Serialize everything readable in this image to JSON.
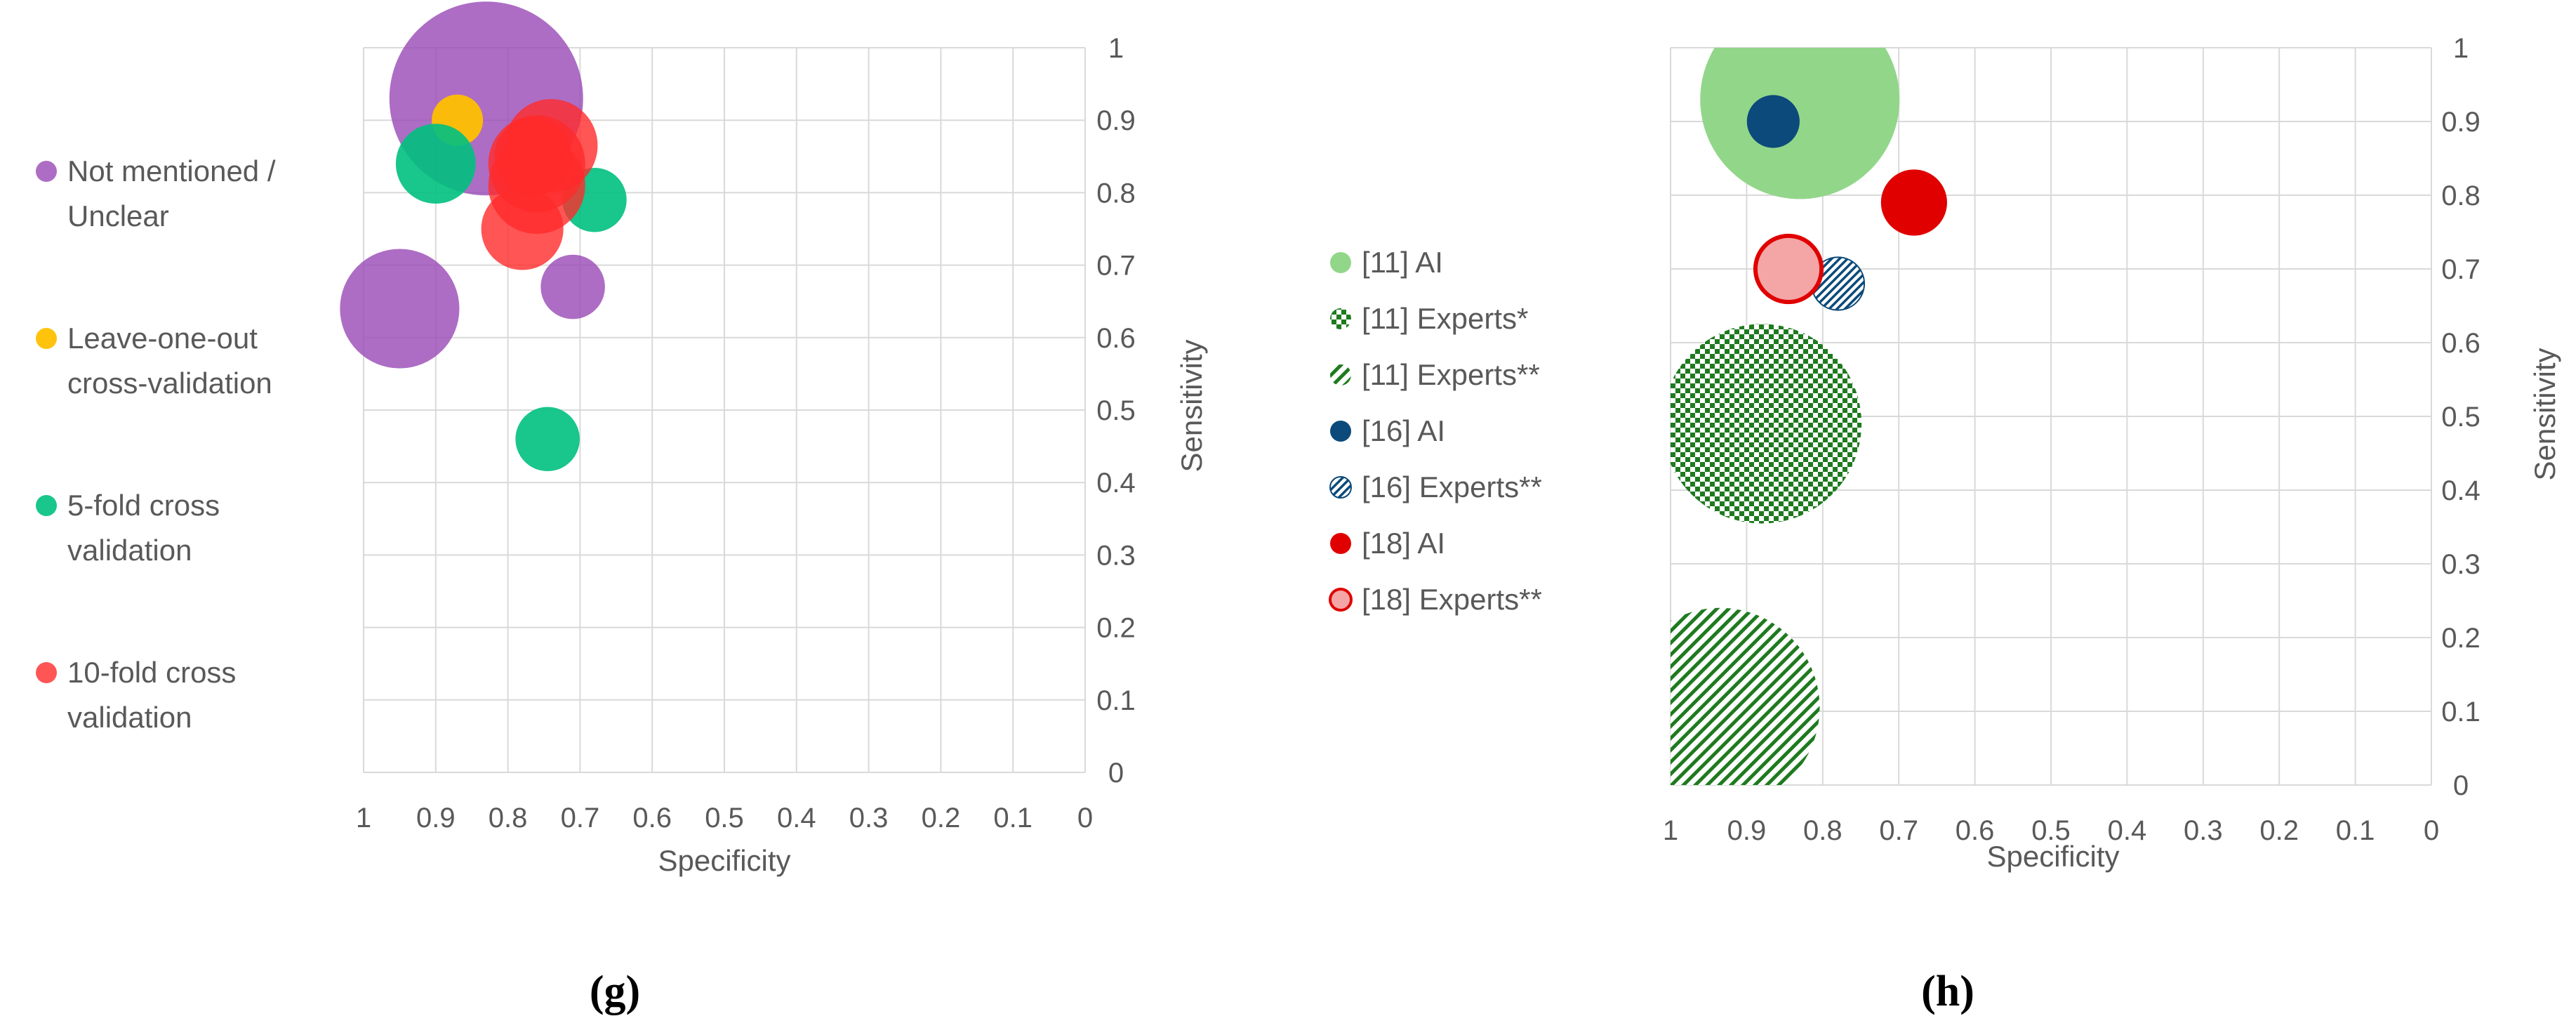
{
  "chart_data": [
    {
      "type": "scatter",
      "bubble": true,
      "panel_label": "(g)",
      "title": "",
      "xlabel": "Specificity",
      "ylabel": "Sensitivity",
      "xlim": [
        1,
        0
      ],
      "ylim": [
        0,
        1
      ],
      "x_ticks": [
        "1",
        "0.9",
        "0.8",
        "0.7",
        "0.6",
        "0.5",
        "0.4",
        "0.3",
        "0.2",
        "0.1",
        "0"
      ],
      "y_ticks": [
        "0",
        "0.1",
        "0.2",
        "0.3",
        "0.4",
        "0.5",
        "0.6",
        "0.7",
        "0.8",
        "0.9",
        "1"
      ],
      "y_axis_side": "right",
      "x_reversed": true,
      "legend_position": "left",
      "grid": true,
      "series": [
        {
          "name": "Not mentioned / Unclear",
          "legend_lines": [
            "Not mentioned /",
            "Unclear"
          ],
          "color": "#9B4DB7",
          "opacity": 0.82,
          "points": [
            {
              "x": 0.83,
              "y": 0.93,
              "size": 1.0
            },
            {
              "x": 0.95,
              "y": 0.64,
              "size": 0.38
            },
            {
              "x": 0.71,
              "y": 0.67,
              "size": 0.11
            }
          ]
        },
        {
          "name": "Leave-one-out cross-validation",
          "legend_lines": [
            "Leave-one-out",
            "cross-validation"
          ],
          "color": "#FFC000",
          "opacity": 0.95,
          "points": [
            {
              "x": 0.87,
              "y": 0.9,
              "size": 0.07
            }
          ]
        },
        {
          "name": "5-fold cross validation",
          "legend_lines": [
            "5-fold cross",
            "validation"
          ],
          "color": "#00C07F",
          "opacity": 0.9,
          "points": [
            {
              "x": 0.9,
              "y": 0.84,
              "size": 0.17
            },
            {
              "x": 0.68,
              "y": 0.79,
              "size": 0.11
            },
            {
              "x": 0.745,
              "y": 0.46,
              "size": 0.11
            }
          ]
        },
        {
          "name": "10-fold cross validation",
          "legend_lines": [
            "10-fold cross",
            "validation"
          ],
          "color": "#FF2A2A",
          "opacity": 0.8,
          "points": [
            {
              "x": 0.74,
              "y": 0.865,
              "size": 0.23
            },
            {
              "x": 0.76,
              "y": 0.84,
              "size": 0.25
            },
            {
              "x": 0.76,
              "y": 0.81,
              "size": 0.25
            },
            {
              "x": 0.765,
              "y": 0.85,
              "size": 0.16
            },
            {
              "x": 0.78,
              "y": 0.75,
              "size": 0.18
            }
          ]
        }
      ]
    },
    {
      "type": "scatter",
      "bubble": true,
      "panel_label": "(h)",
      "title": "",
      "xlabel": "Specificity",
      "ylabel": "Sensitivity",
      "xlim": [
        1,
        0
      ],
      "ylim": [
        0,
        1
      ],
      "x_ticks": [
        "1",
        "0.9",
        "0.8",
        "0.7",
        "0.6",
        "0.5",
        "0.4",
        "0.3",
        "0.2",
        "0.1",
        "0"
      ],
      "y_ticks": [
        "0",
        "0.1",
        "0.2",
        "0.3",
        "0.4",
        "0.5",
        "0.6",
        "0.7",
        "0.8",
        "0.9",
        "1"
      ],
      "y_axis_side": "right",
      "x_reversed": true,
      "legend_position": "left",
      "grid": true,
      "series": [
        {
          "name": "[11] AI",
          "color": "#92D68A",
          "fill": "solid",
          "points": [
            {
              "x": 0.83,
              "y": 0.93,
              "size": 1.0
            }
          ]
        },
        {
          "name": "[11] Experts*",
          "color": "#1E7A1E",
          "fill": "checker",
          "points": [
            {
              "x": 0.88,
              "y": 0.49,
              "size": 1.0
            }
          ]
        },
        {
          "name": "[11] Experts**",
          "color": "#1E7A1E",
          "fill": "diagonal",
          "points": [
            {
              "x": 0.935,
              "y": 0.105,
              "size": 1.0
            }
          ]
        },
        {
          "name": "[16] AI",
          "color": "#0B4A7A",
          "fill": "solid",
          "points": [
            {
              "x": 0.865,
              "y": 0.9,
              "size": 0.07
            }
          ]
        },
        {
          "name": "[16] Experts**",
          "color": "#0B4A7A",
          "fill": "diagonal",
          "points": [
            {
              "x": 0.78,
              "y": 0.68,
              "size": 0.07
            }
          ]
        },
        {
          "name": "[18] AI",
          "color": "#E00000",
          "fill": "solid",
          "points": [
            {
              "x": 0.68,
              "y": 0.79,
              "size": 0.11
            }
          ]
        },
        {
          "name": "[18] Experts**",
          "color": "#E00000",
          "fill": "ring",
          "points": [
            {
              "x": 0.845,
              "y": 0.7,
              "size": 0.11
            }
          ]
        }
      ]
    }
  ]
}
